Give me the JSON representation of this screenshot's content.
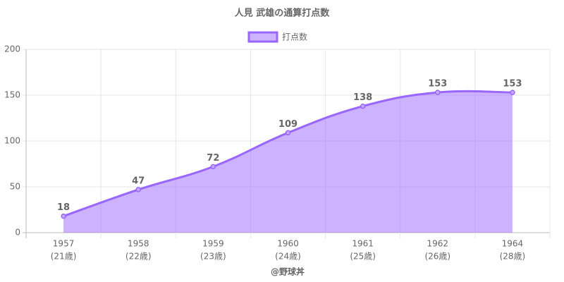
{
  "chart_data": {
    "type": "area",
    "title": "人見 武雄の通算打点数",
    "categories": [
      "1957",
      "1958",
      "1959",
      "1960",
      "1961",
      "1962",
      "1964"
    ],
    "sublabels": [
      "(21歳)",
      "(22歳)",
      "(23歳)",
      "(24歳)",
      "(25歳)",
      "(26歳)",
      "(28歳)"
    ],
    "series": [
      {
        "name": "打点数",
        "color": "#9966ff",
        "values": [
          18,
          47,
          72,
          109,
          138,
          153,
          153
        ]
      }
    ],
    "xlabel": "@野球丼",
    "ylim": [
      0,
      200
    ],
    "yticks": [
      0,
      50,
      100,
      150,
      200
    ],
    "grid": true,
    "legend": "top"
  }
}
